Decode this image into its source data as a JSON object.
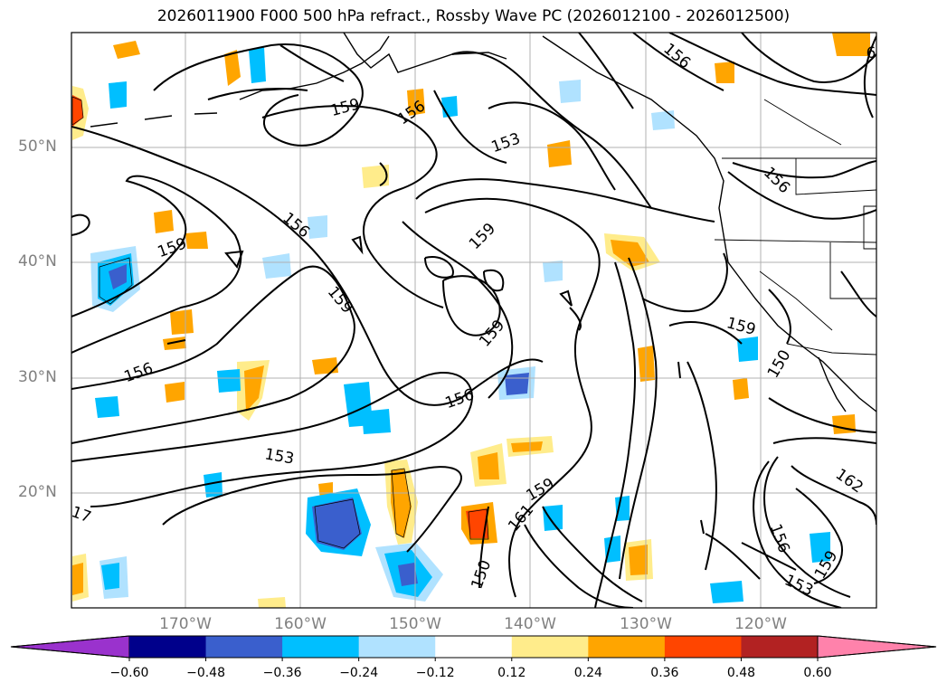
{
  "title": "2026011900 F000 500 hPa refract., Rossby Wave PC (2026012100 - 2026012500)",
  "lat_labels": [
    "50°N",
    "40°N",
    "30°N",
    "20°N"
  ],
  "lon_labels": [
    "170°W",
    "160°W",
    "150°W",
    "140°W",
    "130°W",
    "120°W"
  ],
  "contour_labels": [
    {
      "text": "159",
      "rot": -15
    },
    {
      "text": "156",
      "rot": -35
    },
    {
      "text": "156",
      "rot": -40
    },
    {
      "text": "153",
      "rot": -20
    },
    {
      "text": "159",
      "rot": -45
    },
    {
      "text": "156",
      "rot": 40
    },
    {
      "text": "156",
      "rot": -45
    },
    {
      "text": "159",
      "rot": 50
    },
    {
      "text": "159",
      "rot": -50
    },
    {
      "text": "159",
      "rot": -20
    },
    {
      "text": "156",
      "rot": -20
    },
    {
      "text": "156",
      "rot": -20
    },
    {
      "text": "153",
      "rot": 10
    },
    {
      "text": "159",
      "rot": -30
    },
    {
      "text": "161",
      "rot": -50
    },
    {
      "text": "150",
      "rot": -70
    },
    {
      "text": "159",
      "rot": 15
    },
    {
      "text": "150",
      "rot": -60
    },
    {
      "text": "162",
      "rot": 35
    },
    {
      "text": "156",
      "rot": 70
    },
    {
      "text": "153",
      "rot": 25
    },
    {
      "text": "159",
      "rot": -60
    },
    {
      "text": "17",
      "rot": 20
    },
    {
      "text": "6",
      "rot": 0
    }
  ],
  "colorbar": {
    "tick_labels": [
      "−0.60",
      "−0.48",
      "−0.36",
      "−0.24",
      "−0.12",
      "0.12",
      "0.24",
      "0.36",
      "0.48",
      "0.60"
    ],
    "colors": [
      "#9a32cd",
      "#00008b",
      "#3a5fcd",
      "#00bfff",
      "#b0e2ff",
      "#ffffff",
      "#ffec8b",
      "#ffa500",
      "#ff4500",
      "#b22222",
      "#ff82ab"
    ]
  }
}
